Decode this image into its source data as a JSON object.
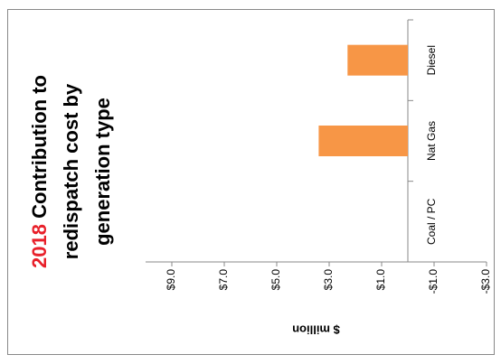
{
  "chart_data": {
    "type": "bar",
    "orientation": "horizontal",
    "title_highlight": "2018",
    "title_lines": [
      "Contribution  to",
      "redispatch cost by",
      "generation type"
    ],
    "title_highlight_color": "#e8202a",
    "y_axis_label": "$ million",
    "categories": [
      "Coal / PC",
      "Nat Gas",
      "Diesel"
    ],
    "values": [
      0,
      3.4,
      2.3
    ],
    "color": "#f79646",
    "ylim": [
      -3,
      10
    ],
    "yticks": [
      {
        "value": -3,
        "label": "-$3.0"
      },
      {
        "value": -1,
        "label": "-$1.0"
      },
      {
        "value": 1,
        "label": "$1.0"
      },
      {
        "value": 3,
        "label": "$3.0"
      },
      {
        "value": 5,
        "label": "$5.0"
      },
      {
        "value": 7,
        "label": "$7.0"
      },
      {
        "value": 9,
        "label": "$9.0"
      }
    ],
    "grid": false
  }
}
